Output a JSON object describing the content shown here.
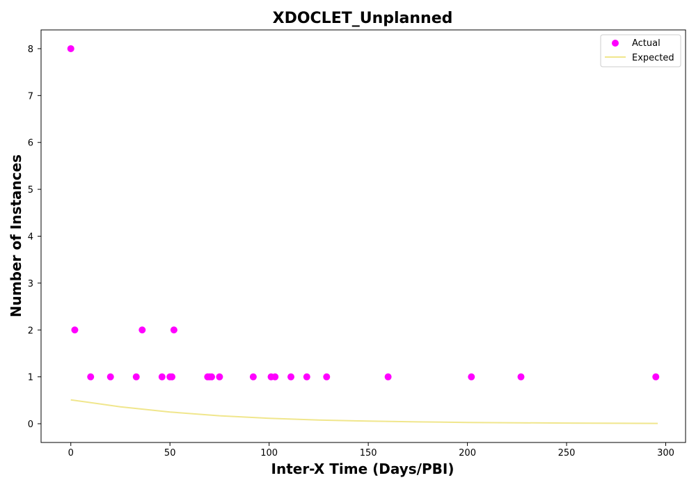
{
  "chart_data": {
    "type": "scatter",
    "title": "XDOCLET_Unplanned",
    "xlabel": "Inter-X Time (Days/PBI)",
    "ylabel": "Number of Instances",
    "xlim": [
      -15,
      310
    ],
    "ylim": [
      -0.4,
      8.4
    ],
    "xticks": [
      0,
      50,
      100,
      150,
      200,
      250,
      300
    ],
    "yticks": [
      0,
      1,
      2,
      3,
      4,
      5,
      6,
      7,
      8
    ],
    "grid": false,
    "legend_position": "top-right",
    "series": [
      {
        "name": "Actual",
        "kind": "scatter",
        "color": "#ff00ff",
        "x": [
          0,
          2,
          10,
          20,
          33,
          36,
          46,
          50,
          51,
          52,
          69,
          70,
          71,
          75,
          92,
          101,
          103,
          111,
          119,
          129,
          160,
          202,
          227,
          295
        ],
        "y": [
          8,
          2,
          1,
          1,
          1,
          2,
          1,
          1,
          1,
          2,
          1,
          1,
          1,
          1,
          1,
          1,
          1,
          1,
          1,
          1,
          1,
          1,
          1,
          1
        ]
      },
      {
        "name": "Expected",
        "kind": "line",
        "color": "#f0e68c",
        "x": [
          0,
          25,
          50,
          75,
          100,
          125,
          150,
          175,
          200,
          225,
          250,
          275,
          296
        ],
        "y": [
          0.51,
          0.36,
          0.25,
          0.17,
          0.115,
          0.08,
          0.055,
          0.04,
          0.028,
          0.02,
          0.014,
          0.01,
          0.007
        ]
      }
    ]
  }
}
